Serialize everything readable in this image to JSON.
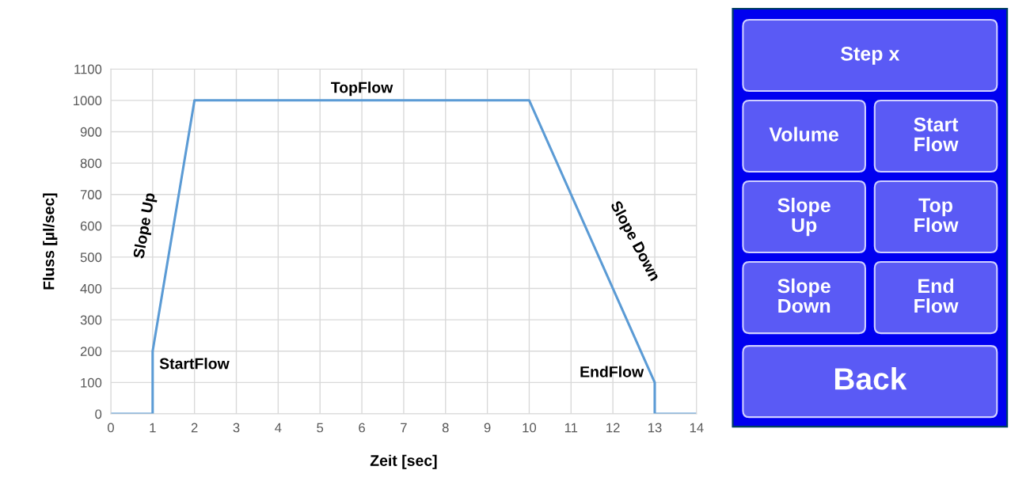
{
  "chart_data": [
    {
      "type": "line",
      "xlabel": "Zeit [sec]",
      "ylabel": "Fluss [µl/sec]",
      "x": [
        0,
        1,
        1,
        2,
        10,
        13,
        13,
        14
      ],
      "series": [
        {
          "color": "#5b9bd5",
          "values": [
            0,
            0,
            200,
            1000,
            1000,
            100,
            0,
            0
          ]
        }
      ],
      "xlim": [
        0,
        14
      ],
      "xticks": [
        0,
        1,
        2,
        3,
        4,
        5,
        6,
        7,
        8,
        9,
        10,
        11,
        12,
        13,
        14
      ],
      "ylim": [
        0,
        1100
      ],
      "yticks": [
        0,
        100,
        200,
        300,
        400,
        500,
        600,
        700,
        800,
        900,
        1000,
        1100
      ],
      "grid": true,
      "legend": false,
      "marker": "none",
      "line_style": "solid",
      "annotations": [
        {
          "text": "TopFlow",
          "x": 6,
          "y": 1000
        },
        {
          "text": "Slope Up",
          "x": 1.5,
          "y": 600
        },
        {
          "text": "StartFlow",
          "x": 1,
          "y": 200
        },
        {
          "text": "Slope Down",
          "x": 11.5,
          "y": 550
        },
        {
          "text": "EndFlow",
          "x": 13,
          "y": 100
        }
      ]
    },
    {
      "type": "other",
      "annotations": [
        "Step x",
        "Volume",
        "Start\nFlow",
        "Slope\nUp",
        "Top\nFlow",
        "Slope\nDown",
        "End\nFlow",
        "Back"
      ]
    }
  ]
}
